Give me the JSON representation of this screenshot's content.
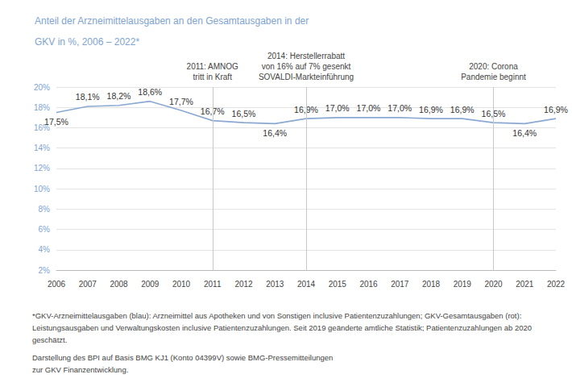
{
  "chart_data": {
    "type": "line",
    "title": "Anteil der Arzneimittelausgaben an den Gesamtausgaben in der\nGKV in %, 2006 – 2022*",
    "categories": [
      "2006",
      "2007",
      "2008",
      "2009",
      "2010",
      "2011",
      "2012",
      "2013",
      "2014",
      "2015",
      "2016",
      "2017",
      "2018",
      "2019",
      "2020",
      "2021",
      "2022"
    ],
    "values": [
      17.5,
      18.1,
      18.2,
      18.6,
      17.7,
      16.7,
      16.5,
      16.4,
      16.9,
      17.0,
      17.0,
      17.0,
      16.9,
      16.9,
      16.5,
      16.4,
      16.9
    ],
    "value_labels": [
      "17,5%",
      "18,1%",
      "18,2%",
      "18,6%",
      "17,7%",
      "16,7%",
      "16,5%",
      "16,4%",
      "16,9%",
      "17,0%",
      "17,0%",
      "17,0%",
      "16,9%",
      "16,9%",
      "16,5%",
      "16,4%",
      "16,9%"
    ],
    "color": "#8aa8d2",
    "ylim": [
      2,
      20
    ],
    "yticks": [
      {
        "value": 2,
        "label": "2%"
      },
      {
        "value": 4,
        "label": "4%"
      },
      {
        "value": 6,
        "label": "6%"
      },
      {
        "value": 8,
        "label": "8%"
      },
      {
        "value": 10,
        "label": "10%"
      },
      {
        "value": 12,
        "label": "12%"
      },
      {
        "value": 14,
        "label": "14%"
      },
      {
        "value": 16,
        "label": "16%"
      },
      {
        "value": 18,
        "label": "18%"
      },
      {
        "value": 20,
        "label": "20%"
      }
    ],
    "grid": true,
    "data_labels": true,
    "annotations": [
      {
        "x": "2011",
        "text": "2011: AMNOG\ntritt in Kraft"
      },
      {
        "x": "2014",
        "text": "2014: Herstellerrabatt\nvon 16% auf 7% gesenkt\nSOVALDI-Markteinführung"
      },
      {
        "x": "2020",
        "text": "2020: Corona\nPandemie beginnt"
      }
    ],
    "footnote": "*GKV-Arzneimittelausgaben (blau): Arzneimittel aus Apotheken und von Sonstigen inclusive Patientenzuzahlungen; GKV-Gesamtausgaben (rot): Leistungsausgaben und Verwaltungskosten inclusive Patientenzuzahlungen. Seit 2019 geänderte amtliche Statistik; Patientenzuzahlungen ab 2020 geschätzt.",
    "source": "Darstellung des BPI auf Basis BMG KJ1 (Konto 04399V) sowie BMG-Pressemitteilungen\nzur GKV Finanzentwicklung."
  }
}
